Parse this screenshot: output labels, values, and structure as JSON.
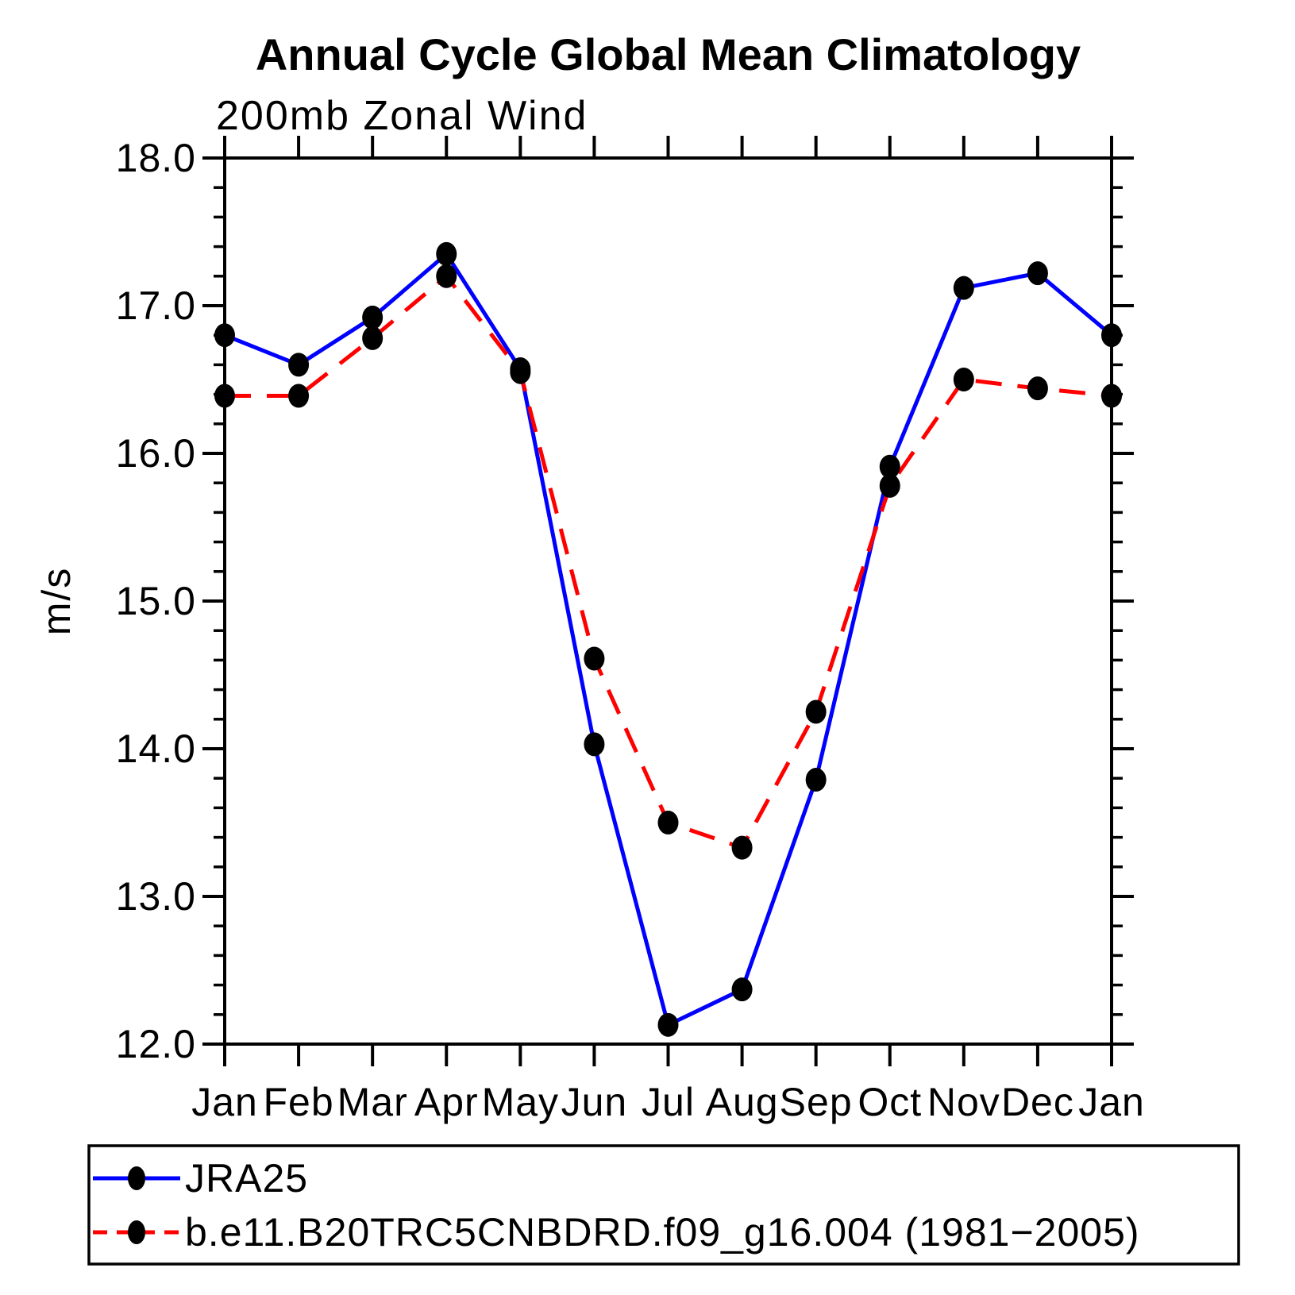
{
  "title": "Annual Cycle Global Mean Climatology",
  "chart_data": {
    "type": "line",
    "title": "Annual Cycle Global Mean Climatology",
    "subtitle": "200mb Zonal Wind",
    "xlabel": "",
    "ylabel": "m/s",
    "categories": [
      "Jan",
      "Feb",
      "Mar",
      "Apr",
      "May",
      "Jun",
      "Jul",
      "Aug",
      "Sep",
      "Oct",
      "Nov",
      "Dec",
      "Jan"
    ],
    "ylim": [
      12.0,
      18.0
    ],
    "y_major_step": 1.0,
    "y_minor_step": 0.2,
    "y_tick_labels": [
      "12.0",
      "13.0",
      "14.0",
      "15.0",
      "16.0",
      "17.0",
      "18.0"
    ],
    "grid": false,
    "frame": true,
    "tick_direction": "outward",
    "legend_position": "below-left-box",
    "marker": "filled-circle",
    "marker_color": "#000000",
    "series": [
      {
        "name": "JRA25",
        "color": "#0000ff",
        "line_style": "solid",
        "values": [
          16.8,
          16.6,
          16.92,
          17.35,
          16.57,
          14.03,
          12.13,
          12.37,
          13.79,
          15.91,
          17.12,
          17.22,
          16.8
        ]
      },
      {
        "name": "b.e11.B20TRC5CNBDRD.f09_g16.004 (1981−2005)",
        "color": "#ff0000",
        "line_style": "dashed",
        "values": [
          16.39,
          16.39,
          16.78,
          17.2,
          16.55,
          14.61,
          13.5,
          13.33,
          14.25,
          15.78,
          16.5,
          16.44,
          16.39
        ]
      }
    ]
  }
}
